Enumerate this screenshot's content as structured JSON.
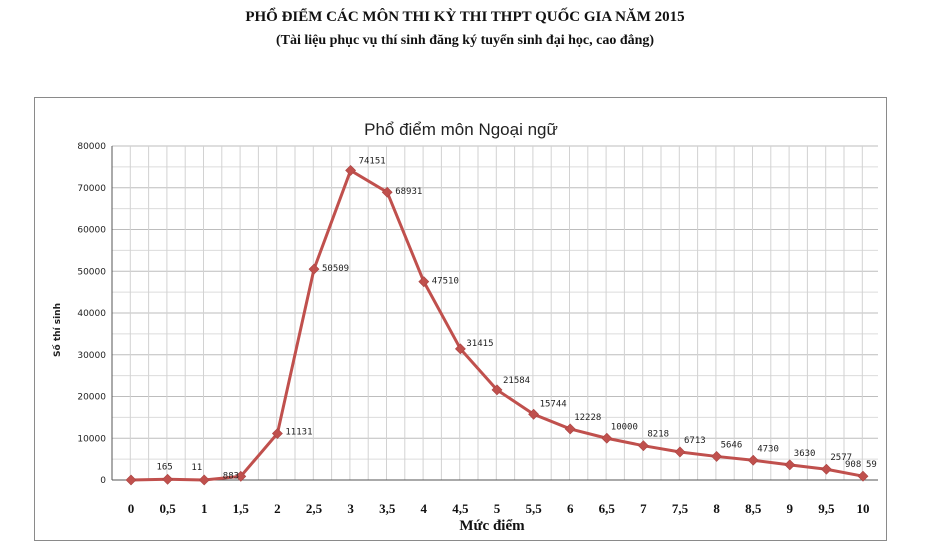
{
  "header": {
    "title": "PHỔ ĐIỂM CÁC MÔN THI KỲ THI THPT QUỐC GIA NĂM 2015",
    "subtitle": "(Tài liệu phục vụ thí sinh đăng ký tuyển sinh đại học, cao đẳng)"
  },
  "chart_data": {
    "type": "line",
    "title": "Phổ điểm môn Ngoại ngữ",
    "xlabel": "Mức điểm",
    "ylabel": "Số thí sinh",
    "x": [
      "0",
      "0,5",
      "1",
      "1,5",
      "2",
      "2,5",
      "3",
      "3,5",
      "4",
      "4,5",
      "5",
      "5,5",
      "6",
      "6,5",
      "7",
      "7,5",
      "8",
      "8,5",
      "9",
      "9,5",
      "10"
    ],
    "values": [
      0,
      165,
      11,
      883,
      11131,
      50509,
      74151,
      68931,
      47510,
      31415,
      21584,
      15744,
      12228,
      10000,
      8218,
      6713,
      5646,
      4730,
      3630,
      2577,
      908
    ],
    "data_labels": [
      "",
      "165",
      "11",
      "883",
      "11131",
      "50509",
      "74151",
      "68931",
      "47510",
      "31415",
      "21584",
      "15744",
      "12228",
      "10000",
      "8218",
      "6713",
      "5646",
      "4730",
      "3630",
      "2577",
      "908"
    ],
    "extra_label": "59",
    "yticks": [
      "0",
      "10000",
      "20000",
      "30000",
      "40000",
      "50000",
      "60000",
      "70000",
      "80000"
    ],
    "ylim": [
      0,
      80000
    ],
    "grid": true,
    "line_color": "#c0504d"
  }
}
